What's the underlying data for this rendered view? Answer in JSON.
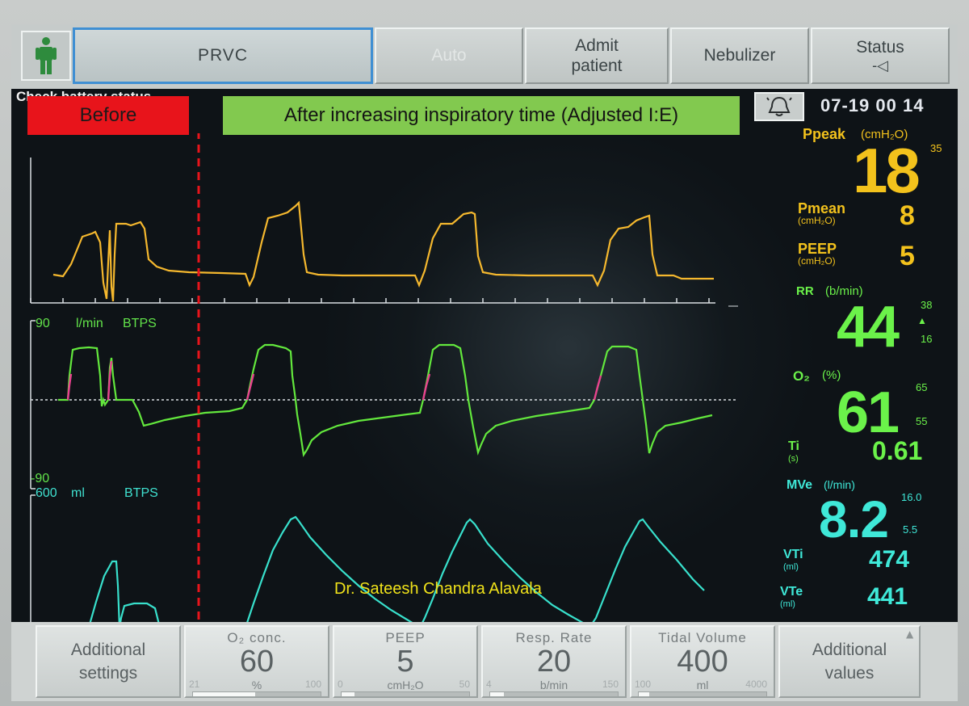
{
  "header": {
    "mode_label": "PRVC",
    "auto_label": "Auto",
    "admit_line1": "Admit",
    "admit_line2": "patient",
    "nebulizer_label": "Nebulizer",
    "status_label": "Status",
    "status_sub": "-◁"
  },
  "banners": {
    "before": "Before",
    "after": "After increasing inspiratory time (Adjusted I:E)",
    "partial_message": "Check battery status"
  },
  "datetime": "07-19  00 14",
  "waveforms": {
    "flow_scale_top": "90",
    "flow_unit": "l/min",
    "flow_cond": "BTPS",
    "flow_scale_bottom": "-90",
    "volume_scale": "600",
    "volume_unit": "ml",
    "volume_cond": "BTPS"
  },
  "watermark": "Dr. Sateesh Chandra Alavala",
  "params": {
    "ppeak_label": "Ppeak",
    "ppeak_unit": "(cmH₂O)",
    "ppeak_value": "18",
    "ppeak_limit": "35",
    "pmean_label": "Pmean",
    "pmean_unit": "(cmH₂O)",
    "pmean_value": "8",
    "peep_label": "PEEP",
    "peep_unit": "(cmH₂O)",
    "peep_value": "5",
    "rr_label": "RR",
    "rr_unit": "(b/min)",
    "rr_value": "44",
    "rr_high": "38",
    "rr_low": "16",
    "o2_label": "O₂",
    "o2_unit": "(%)",
    "o2_value": "61",
    "o2_high": "65",
    "o2_low": "55",
    "ti_label": "Ti",
    "ti_unit": "(s)",
    "ti_value": "0.61",
    "mve_label": "MVe",
    "mve_unit": "(l/min)",
    "mve_value": "8.2",
    "mve_high": "16.0",
    "mve_low": "5.5",
    "vti_label": "VTi",
    "vti_unit": "(ml)",
    "vti_value": "474",
    "vte_label": "VTe",
    "vte_unit": "(ml)",
    "vte_value": "441"
  },
  "footer": {
    "additional_settings_1": "Additional",
    "additional_settings_2": "settings",
    "additional_values_1": "Additional",
    "additional_values_2": "values",
    "o2": {
      "title": "O₂ conc.",
      "value": "60",
      "unit": "%",
      "min": "21",
      "max": "100",
      "fraction": 0.49
    },
    "peep": {
      "title": "PEEP",
      "value": "5",
      "unit": "cmH₂O",
      "min": "0",
      "max": "50",
      "fraction": 0.1
    },
    "rr": {
      "title": "Resp. Rate",
      "value": "20",
      "unit": "b/min",
      "min": "4",
      "max": "150",
      "fraction": 0.11
    },
    "vt": {
      "title": "Tidal Volume",
      "value": "400",
      "unit": "ml",
      "min": "100",
      "max": "4000",
      "fraction": 0.08
    }
  },
  "colors": {
    "pressure": "#f5b82e",
    "flow": "#63e83d",
    "flow_insp_pause": "#e8408f",
    "volume": "#38e0cc",
    "before_banner": "#e8141b",
    "after_banner": "#82c94f",
    "watermark": "#f0e21a"
  }
}
